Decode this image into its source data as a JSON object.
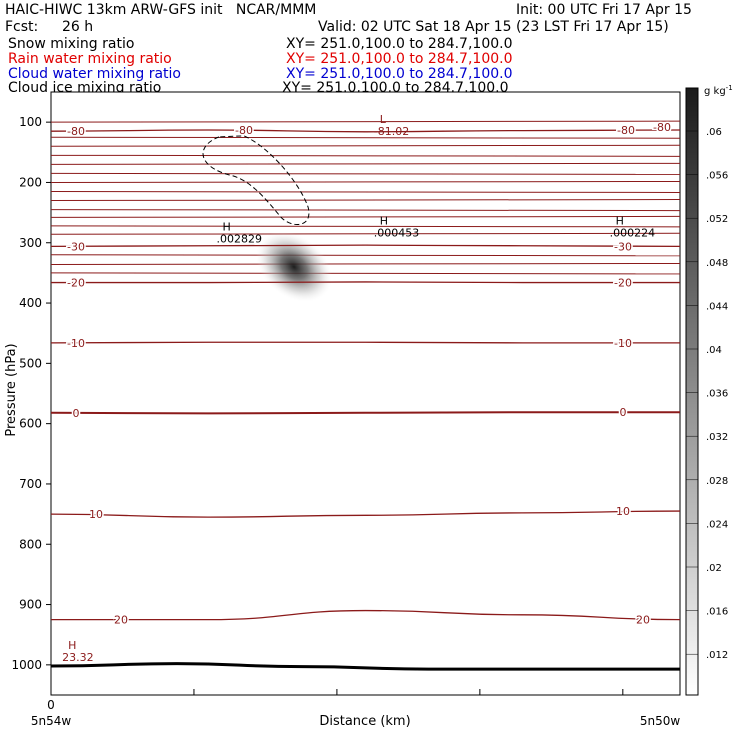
{
  "header": {
    "title": "HAIC-HIWC 13km ARW-GFS init   NCAR/MMM",
    "init": "Init: 00 UTC Fri 17 Apr 15",
    "fcst_label": "Fcst:",
    "fcst_value": "26 h",
    "valid": "Valid: 02 UTC Sat 18 Apr 15 (23 LST Fri 17 Apr 15)",
    "fields": [
      {
        "name": "Snow mixing ratio",
        "xy": "XY= 251.0,100.0 to 284.7,100.0",
        "color": "#000000"
      },
      {
        "name": "Rain water mixing ratio",
        "xy": "XY= 251.0,100.0 to 284.7,100.0",
        "color": "#e00000"
      },
      {
        "name": "Cloud water mixing ratio",
        "xy": "XY= 251.0,100.0 to 284.7,100.0",
        "color": "#0000d0"
      },
      {
        "name": "Cloud ice mixing ratio",
        "xy": "XY= 251.0,100.0 to 284.7,100.0",
        "color": "#000000"
      }
    ]
  },
  "chart_data": {
    "type": "cross-section",
    "ylabel": "Pressure (hPa)",
    "xlabel": "Distance (km)",
    "x_origin_label": "0",
    "x_left_label": "5n54w",
    "x_right_label": "5n50w",
    "y_ticks": [
      100,
      200,
      300,
      400,
      500,
      600,
      700,
      800,
      900,
      1000
    ],
    "y_range_hpa": [
      50,
      1050
    ],
    "x_range": [
      0,
      4.4
    ],
    "x_ticks": [
      1,
      2,
      3,
      4
    ],
    "temperature_contours": [
      {
        "value": -80,
        "label": "-80",
        "pressure": [
          115,
          113,
          116,
          114,
          113
        ]
      },
      {
        "value": -30,
        "label": "-30",
        "pressure": [
          306,
          305,
          304,
          305,
          306
        ]
      },
      {
        "value": -20,
        "label": "-20",
        "pressure": [
          366,
          366,
          365,
          366,
          366
        ]
      },
      {
        "value": -10,
        "label": "-10",
        "pressure": [
          466,
          465,
          465,
          466,
          466
        ]
      },
      {
        "value": 0,
        "label": "0",
        "pressure": [
          582,
          583,
          582,
          581,
          581
        ]
      },
      {
        "value": 10,
        "label": "10",
        "pressure": [
          750,
          755,
          752,
          748,
          745
        ]
      },
      {
        "value": 20,
        "label": "20",
        "pressure": [
          925,
          925,
          910,
          917,
          925
        ]
      }
    ],
    "extrema": [
      {
        "kind": "L",
        "value": "-81.02",
        "x": 2.3,
        "pressure": 118
      },
      {
        "kind": "H",
        "value": ".000453",
        "x": 2.3,
        "pressure": 286
      },
      {
        "kind": "H",
        "value": ".002829",
        "x": 1.2,
        "pressure": 296
      },
      {
        "kind": "H",
        "value": ".000224",
        "x": 3.95,
        "pressure": 286
      },
      {
        "kind": "H",
        "value": "23.32",
        "x": 0.12,
        "pressure": 990
      }
    ],
    "shaded_field": {
      "name": "Snow mixing ratio",
      "units": "g kg-1",
      "max_value": 0.06,
      "center_x": 1.7,
      "center_pressure": 340
    },
    "colorbar": {
      "units_label": "g kg",
      "units_exp": "-1",
      "levels": [
        ".06",
        ".056",
        ".052",
        ".048",
        ".044",
        ".04",
        ".036",
        ".032",
        ".028",
        ".024",
        ".02",
        ".016",
        ".012"
      ]
    },
    "terrain_pressure": [
      1002,
      998,
      1003,
      1007,
      1007,
      1007
    ]
  }
}
